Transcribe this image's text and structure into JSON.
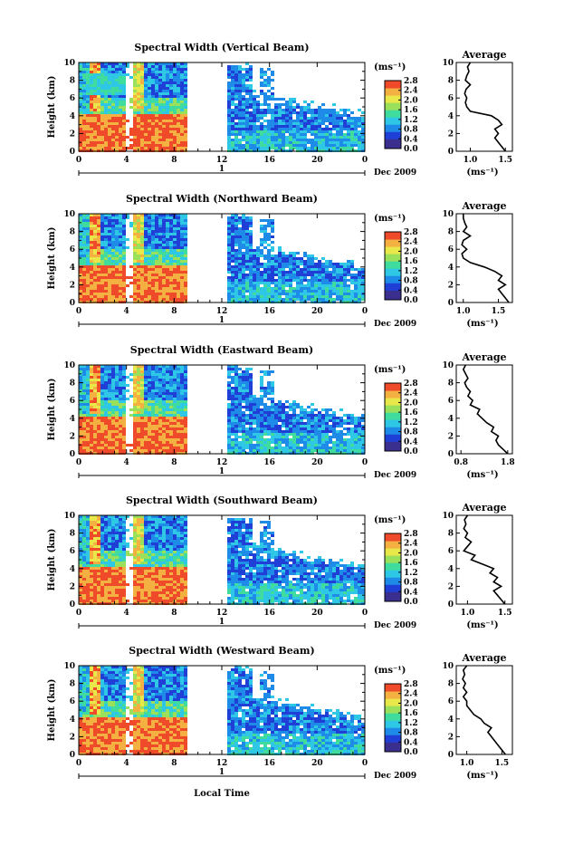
{
  "figure": {
    "xlabel": "Local Time",
    "date_label": "Dec 2009",
    "day_marker": "1",
    "ylabel": "Height (km)",
    "unit_label": "(ms⁻¹)",
    "average_title": "Average",
    "colors": [
      "#3a2f8f",
      "#1f3fd6",
      "#1f8be8",
      "#2ec7e6",
      "#3fdc9e",
      "#9be05a",
      "#e8e84a",
      "#f5b042",
      "#ef4a2a"
    ]
  },
  "chart_data": [
    {
      "type": "heatmap",
      "title": "Spectral Width (Vertical Beam)",
      "x_ticks": [
        "0",
        "4",
        "8",
        "12",
        "16",
        "20",
        "0"
      ],
      "y_ticks": [
        "0",
        "2",
        "4",
        "6",
        "8",
        "10"
      ],
      "ylim": [
        0,
        10
      ],
      "colorbar_ticks": [
        "0.0",
        "0.4",
        "0.8",
        "1.2",
        "1.6",
        "2.0",
        "2.4",
        "2.8"
      ],
      "colorbar_range": [
        0,
        2.8
      ],
      "average": {
        "x_ticks": [
          "1.0",
          "1.5"
        ],
        "xlim": [
          0.8,
          1.6
        ],
        "heights": [
          0,
          0.5,
          1,
          1.5,
          2,
          2.5,
          3,
          3.5,
          4,
          4.5,
          5,
          5.5,
          6,
          6.5,
          7,
          7.5,
          8,
          8.5,
          9,
          9.5,
          10
        ],
        "values": [
          1.5,
          1.45,
          1.4,
          1.35,
          1.4,
          1.35,
          1.45,
          1.4,
          1.3,
          1.0,
          0.95,
          0.93,
          0.95,
          0.92,
          0.94,
          1.0,
          0.93,
          0.95,
          0.98,
          0.96,
          1.0
        ]
      }
    },
    {
      "type": "heatmap",
      "title": "Spectral Width (Northward Beam)",
      "x_ticks": [
        "0",
        "4",
        "8",
        "12",
        "16",
        "20",
        "0"
      ],
      "y_ticks": [
        "0",
        "2",
        "4",
        "6",
        "8",
        "10"
      ],
      "ylim": [
        0,
        10
      ],
      "colorbar_ticks": [
        "0.0",
        "0.4",
        "0.8",
        "1.2",
        "1.6",
        "2.0",
        "2.4",
        "2.8"
      ],
      "colorbar_range": [
        0,
        2.8
      ],
      "average": {
        "x_ticks": [
          "1.0",
          "1.5"
        ],
        "xlim": [
          0.9,
          1.7
        ],
        "heights": [
          0,
          0.5,
          1,
          1.5,
          2,
          2.5,
          3,
          3.5,
          4,
          4.5,
          5,
          5.5,
          6,
          6.5,
          7,
          7.5,
          8,
          8.5,
          9,
          9.5,
          10
        ],
        "values": [
          1.65,
          1.6,
          1.55,
          1.5,
          1.6,
          1.5,
          1.55,
          1.45,
          1.3,
          1.1,
          1.0,
          0.98,
          1.05,
          0.98,
          1.0,
          1.1,
          1.0,
          1.05,
          1.02,
          1.0,
          1.0
        ]
      }
    },
    {
      "type": "heatmap",
      "title": "Spectral Width (Eastward Beam)",
      "x_ticks": [
        "0",
        "4",
        "8",
        "12",
        "16",
        "20",
        "0"
      ],
      "y_ticks": [
        "0",
        "2",
        "4",
        "6",
        "8",
        "10"
      ],
      "ylim": [
        0,
        10
      ],
      "colorbar_ticks": [
        "0.0",
        "0.4",
        "0.8",
        "1.2",
        "1.6",
        "2.0",
        "2.4",
        "2.8"
      ],
      "colorbar_range": [
        0,
        2.8
      ],
      "average": {
        "x_ticks": [
          "0.8",
          "1.8"
        ],
        "xlim": [
          0.7,
          1.9
        ],
        "heights": [
          0,
          0.5,
          1,
          1.5,
          2,
          2.5,
          3,
          3.5,
          4,
          4.5,
          5,
          5.5,
          6,
          6.5,
          7,
          7.5,
          8,
          8.5,
          9,
          9.5,
          10
        ],
        "values": [
          1.8,
          1.7,
          1.6,
          1.55,
          1.6,
          1.45,
          1.5,
          1.35,
          1.25,
          1.15,
          1.2,
          1.0,
          1.05,
          0.95,
          1.0,
          0.92,
          0.88,
          0.95,
          0.9,
          0.85,
          0.9
        ]
      }
    },
    {
      "type": "heatmap",
      "title": "Spectral Width (Southward Beam)",
      "x_ticks": [
        "0",
        "4",
        "8",
        "12",
        "16",
        "20",
        "0"
      ],
      "y_ticks": [
        "0",
        "2",
        "4",
        "6",
        "8",
        "10"
      ],
      "ylim": [
        0,
        10
      ],
      "colorbar_ticks": [
        "0.0",
        "0.4",
        "0.8",
        "1.2",
        "1.6",
        "2.0",
        "2.4",
        "2.8"
      ],
      "colorbar_range": [
        0,
        2.8
      ],
      "average": {
        "x_ticks": [
          "1.0",
          "1.5"
        ],
        "xlim": [
          0.85,
          1.6
        ],
        "heights": [
          0,
          0.5,
          1,
          1.5,
          2,
          2.5,
          3,
          3.5,
          4,
          4.5,
          5,
          5.5,
          6,
          6.5,
          7,
          7.5,
          8,
          8.5,
          9,
          9.5,
          10
        ],
        "values": [
          1.5,
          1.45,
          1.4,
          1.35,
          1.45,
          1.35,
          1.4,
          1.3,
          1.35,
          1.2,
          1.05,
          1.1,
          0.95,
          1.0,
          1.05,
          0.97,
          1.0,
          0.95,
          0.98,
          0.96,
          1.0
        ]
      }
    },
    {
      "type": "heatmap",
      "title": "Spectral Width (Westward Beam)",
      "x_ticks": [
        "0",
        "4",
        "8",
        "12",
        "16",
        "20",
        "0"
      ],
      "y_ticks": [
        "0",
        "2",
        "4",
        "6",
        "8",
        "10"
      ],
      "ylim": [
        0,
        10
      ],
      "colorbar_ticks": [
        "0.0",
        "0.4",
        "0.8",
        "1.2",
        "1.6",
        "2.0",
        "2.4",
        "2.8"
      ],
      "colorbar_range": [
        0,
        2.8
      ],
      "average": {
        "x_ticks": [
          "1.0",
          "1.5"
        ],
        "xlim": [
          0.85,
          1.65
        ],
        "heights": [
          0,
          0.5,
          1,
          1.5,
          2,
          2.5,
          3,
          3.5,
          4,
          4.5,
          5,
          5.5,
          6,
          6.5,
          7,
          7.5,
          8,
          8.5,
          9,
          9.5,
          10
        ],
        "values": [
          1.55,
          1.5,
          1.45,
          1.4,
          1.35,
          1.3,
          1.35,
          1.25,
          1.2,
          1.1,
          1.05,
          1.0,
          1.0,
          0.95,
          1.0,
          0.95,
          0.98,
          0.94,
          0.97,
          0.95,
          1.0
        ]
      }
    }
  ]
}
